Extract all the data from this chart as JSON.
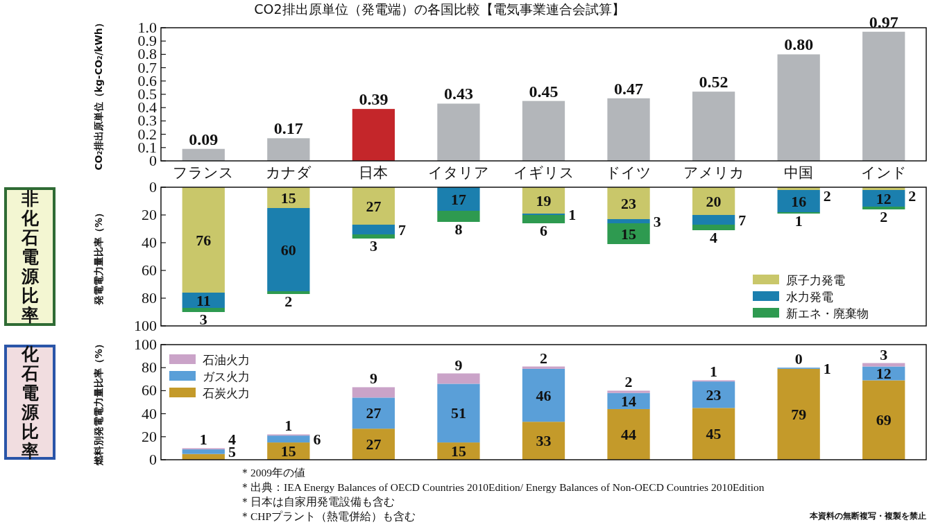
{
  "chart_data": [
    {
      "type": "bar",
      "title": "CO2排出原単位（発電端）の各国比較【電気事業連合会試算】",
      "ylabel": "CO₂排出原単位（kg-CO₂/kWh）",
      "categories": [
        "フランス",
        "カナダ",
        "日本",
        "イタリア",
        "イギリス",
        "ドイツ",
        "アメリカ",
        "中国",
        "インド"
      ],
      "values": [
        0.09,
        0.17,
        0.39,
        0.43,
        0.45,
        0.47,
        0.52,
        0.8,
        0.97
      ],
      "colors": [
        "#b3b6ba",
        "#b3b6ba",
        "#c4262a",
        "#b3b6ba",
        "#b3b6ba",
        "#b3b6ba",
        "#b3b6ba",
        "#b3b6ba",
        "#b3b6ba"
      ],
      "value_labels": [
        "0.09",
        "0.17",
        "0.39",
        "0.43",
        "0.45",
        "0.47",
        "0.52",
        "0.80",
        "0.97"
      ],
      "ylim": [
        0,
        1
      ],
      "yticks": [
        0,
        0.1,
        0.2,
        0.3,
        0.4,
        0.5,
        0.6,
        0.7,
        0.8,
        0.9,
        {
          "value": 1,
          "label": "1.0"
        }
      ]
    },
    {
      "type": "bar",
      "title": "非化石電源比率",
      "ylabel": "発電電力量比率（%）",
      "stacked": true,
      "categories": [
        null,
        null,
        null,
        null,
        null,
        null,
        null,
        null,
        null
      ],
      "series": [
        {
          "name": "原子力発電",
          "color": "#c9c76a",
          "values": [
            76,
            15,
            27,
            0,
            19,
            23,
            20,
            2,
            2
          ],
          "value_labels": [
            "76",
            "15",
            "27",
            null,
            "19",
            "23",
            "20",
            "2",
            "2"
          ]
        },
        {
          "name": "水力発電",
          "color": "#1b7fae",
          "values": [
            11,
            60,
            7,
            17,
            1,
            3,
            7,
            16,
            12
          ],
          "value_labels": [
            "11",
            "60",
            "7",
            "17",
            "1",
            "3",
            "7",
            "16",
            "12"
          ]
        },
        {
          "name": "新エネ・廃棄物",
          "color": "#2e9a50",
          "values": [
            3,
            2,
            3,
            8,
            6,
            15,
            4,
            1,
            2
          ],
          "value_labels": [
            "3",
            "2",
            "3",
            "8",
            "6",
            "15",
            "4",
            "1",
            "2"
          ]
        }
      ],
      "ylim": [
        100,
        0
      ],
      "yticks": [
        0,
        20,
        40,
        60,
        80,
        100
      ],
      "legend": "bottom right",
      "tick_labels": "y"
    },
    {
      "type": "bar",
      "title": "化石電源比率",
      "ylabel": "燃料別発電電力量比率（%）",
      "stacked": true,
      "categories": [
        null,
        null,
        null,
        null,
        null,
        null,
        null,
        null,
        null
      ],
      "series": [
        {
          "name": "石炭火力",
          "color": "#c49a2a",
          "values": [
            5,
            15,
            27,
            15,
            33,
            44,
            45,
            79,
            69
          ]
        },
        {
          "name": "ガス火力",
          "color": "#5a9fd8",
          "values": [
            4,
            6,
            27,
            51,
            46,
            14,
            23,
            1,
            12
          ]
        },
        {
          "name": "石油火力",
          "color": "#caa3c8",
          "values": [
            1,
            1,
            9,
            9,
            2,
            2,
            1,
            0,
            3
          ]
        }
      ],
      "data_labels": true,
      "ylim": [
        0,
        100
      ],
      "yticks": [
        0,
        20,
        40,
        60,
        80,
        100
      ],
      "legend": "top left",
      "tick_labels": "y",
      "annotations": [
        "＊2009年の値",
        "＊出典：IEA Energy Balances of OECD Countries 2010Edition/ Energy Balances of Non-OECD Countries 2010Edition",
        "＊日本は自家用発電設備も含む",
        "＊CHPプラント（熱電併給）も含む",
        "本資料の無断複写・複製を禁止"
      ]
    }
  ]
}
